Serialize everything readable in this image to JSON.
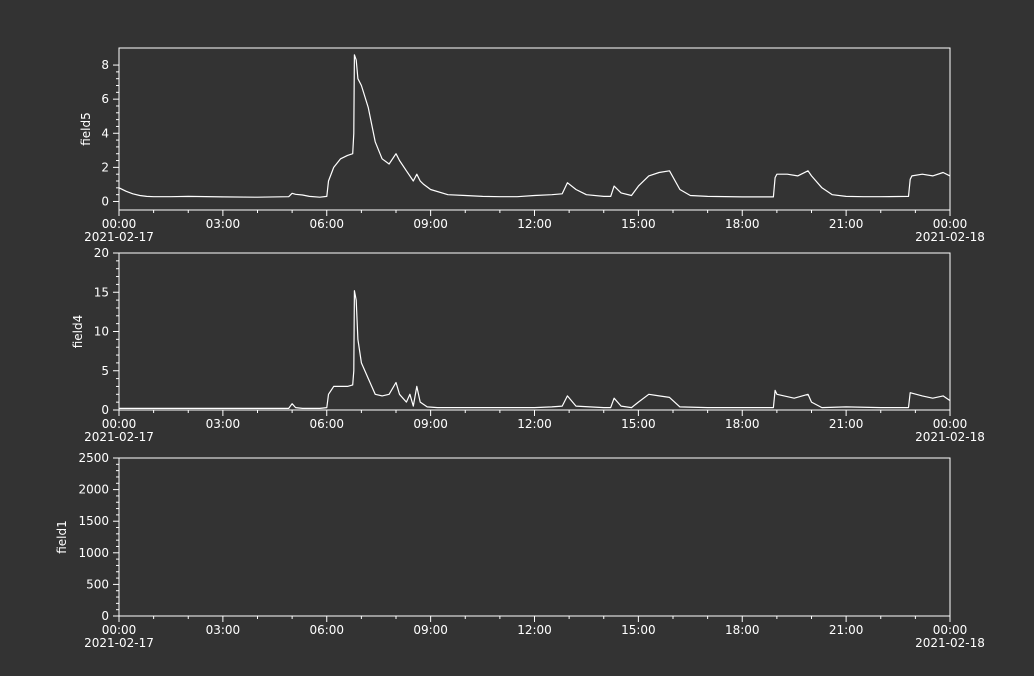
{
  "chart_data": [
    {
      "type": "line",
      "ylabel": "field5",
      "ylim": [
        -0.5,
        9.0
      ],
      "yticks": [
        0,
        2,
        4,
        6,
        8
      ],
      "xticks": [
        "00:00",
        "03:00",
        "06:00",
        "09:00",
        "12:00",
        "15:00",
        "18:00",
        "21:00",
        "00:00"
      ],
      "xdates": [
        "2021-02-17",
        "",
        "",
        "",
        "",
        "",
        "",
        "",
        "2021-02-18"
      ],
      "xlim_hours": [
        0,
        24
      ],
      "x": [
        0.0,
        0.2,
        0.4,
        0.6,
        0.8,
        1.0,
        1.5,
        2.0,
        3.0,
        4.0,
        4.9,
        5.0,
        5.1,
        5.3,
        5.5,
        5.8,
        6.0,
        6.05,
        6.2,
        6.4,
        6.6,
        6.75,
        6.78,
        6.8,
        6.85,
        6.9,
        7.0,
        7.2,
        7.4,
        7.6,
        7.8,
        8.0,
        8.1,
        8.3,
        8.5,
        8.6,
        8.7,
        8.8,
        9.0,
        9.5,
        10.0,
        10.5,
        11.0,
        11.5,
        12.0,
        12.5,
        12.8,
        12.95,
        13.2,
        13.5,
        14.0,
        14.2,
        14.3,
        14.5,
        14.8,
        15.0,
        15.3,
        15.6,
        15.9,
        16.2,
        16.5,
        17.0,
        18.0,
        18.9,
        18.95,
        19.0,
        19.3,
        19.6,
        19.9,
        20.0,
        20.3,
        20.6,
        21.0,
        21.5,
        22.0,
        22.8,
        22.85,
        22.9,
        23.2,
        23.5,
        23.8,
        24.0
      ],
      "values": [
        0.8,
        0.6,
        0.45,
        0.35,
        0.3,
        0.28,
        0.28,
        0.3,
        0.27,
        0.25,
        0.28,
        0.48,
        0.42,
        0.38,
        0.3,
        0.25,
        0.3,
        1.2,
        2.0,
        2.5,
        2.7,
        2.8,
        4.0,
        8.6,
        8.3,
        7.2,
        6.8,
        5.5,
        3.5,
        2.5,
        2.2,
        2.8,
        2.4,
        1.8,
        1.2,
        1.6,
        1.2,
        1.0,
        0.7,
        0.4,
        0.35,
        0.3,
        0.28,
        0.28,
        0.35,
        0.4,
        0.45,
        1.1,
        0.7,
        0.4,
        0.3,
        0.3,
        0.9,
        0.5,
        0.35,
        0.9,
        1.5,
        1.7,
        1.8,
        0.7,
        0.35,
        0.3,
        0.27,
        0.27,
        1.4,
        1.6,
        1.6,
        1.5,
        1.8,
        1.5,
        0.8,
        0.4,
        0.3,
        0.28,
        0.28,
        0.3,
        1.3,
        1.5,
        1.6,
        1.5,
        1.7,
        1.5
      ]
    },
    {
      "type": "line",
      "ylabel": "field4",
      "ylim": [
        0,
        20
      ],
      "yticks": [
        0,
        5,
        10,
        15,
        20
      ],
      "xticks": [
        "00:00",
        "03:00",
        "06:00",
        "09:00",
        "12:00",
        "15:00",
        "18:00",
        "21:00",
        "00:00"
      ],
      "xdates": [
        "2021-02-17",
        "",
        "",
        "",
        "",
        "",
        "",
        "",
        "2021-02-18"
      ],
      "xlim_hours": [
        0,
        24
      ],
      "x": [
        0.0,
        1.0,
        2.0,
        3.0,
        4.0,
        4.9,
        5.0,
        5.1,
        5.3,
        5.8,
        6.0,
        6.05,
        6.2,
        6.4,
        6.6,
        6.75,
        6.78,
        6.8,
        6.85,
        6.9,
        7.0,
        7.2,
        7.4,
        7.6,
        7.8,
        8.0,
        8.1,
        8.3,
        8.4,
        8.5,
        8.6,
        8.7,
        8.9,
        9.2,
        10.0,
        11.0,
        12.0,
        12.5,
        12.8,
        12.95,
        13.2,
        14.0,
        14.2,
        14.3,
        14.5,
        14.8,
        15.0,
        15.3,
        15.6,
        15.9,
        16.2,
        17.0,
        18.0,
        18.9,
        18.95,
        19.0,
        19.5,
        19.9,
        20.0,
        20.3,
        21.0,
        22.0,
        22.8,
        22.85,
        23.2,
        23.5,
        23.8,
        24.0
      ],
      "values": [
        0.2,
        0.2,
        0.2,
        0.2,
        0.2,
        0.2,
        0.8,
        0.3,
        0.2,
        0.2,
        0.3,
        2.0,
        3.0,
        3.0,
        3.0,
        3.2,
        5.0,
        15.2,
        14.0,
        9.0,
        6.0,
        4.0,
        2.0,
        1.8,
        2.0,
        3.5,
        2.0,
        1.0,
        2.0,
        0.5,
        3.0,
        1.0,
        0.4,
        0.3,
        0.3,
        0.3,
        0.3,
        0.4,
        0.5,
        1.8,
        0.5,
        0.3,
        0.3,
        1.5,
        0.5,
        0.3,
        1.0,
        2.0,
        1.8,
        1.6,
        0.4,
        0.3,
        0.3,
        0.3,
        2.5,
        2.0,
        1.5,
        2.0,
        1.0,
        0.3,
        0.4,
        0.3,
        0.3,
        2.2,
        1.8,
        1.5,
        1.8,
        1.2
      ]
    },
    {
      "type": "line",
      "ylabel": "field1",
      "ylim": [
        0,
        2500
      ],
      "yticks": [
        0,
        500,
        1000,
        1500,
        2000,
        2500
      ],
      "xticks": [
        "00:00",
        "03:00",
        "06:00",
        "09:00",
        "12:00",
        "15:00",
        "18:00",
        "21:00",
        "00:00"
      ],
      "xdates": [
        "2021-02-17",
        "",
        "",
        "",
        "",
        "",
        "",
        "",
        "2021-02-18"
      ],
      "xlim_hours": [
        0,
        24
      ],
      "x": [],
      "values": []
    }
  ]
}
